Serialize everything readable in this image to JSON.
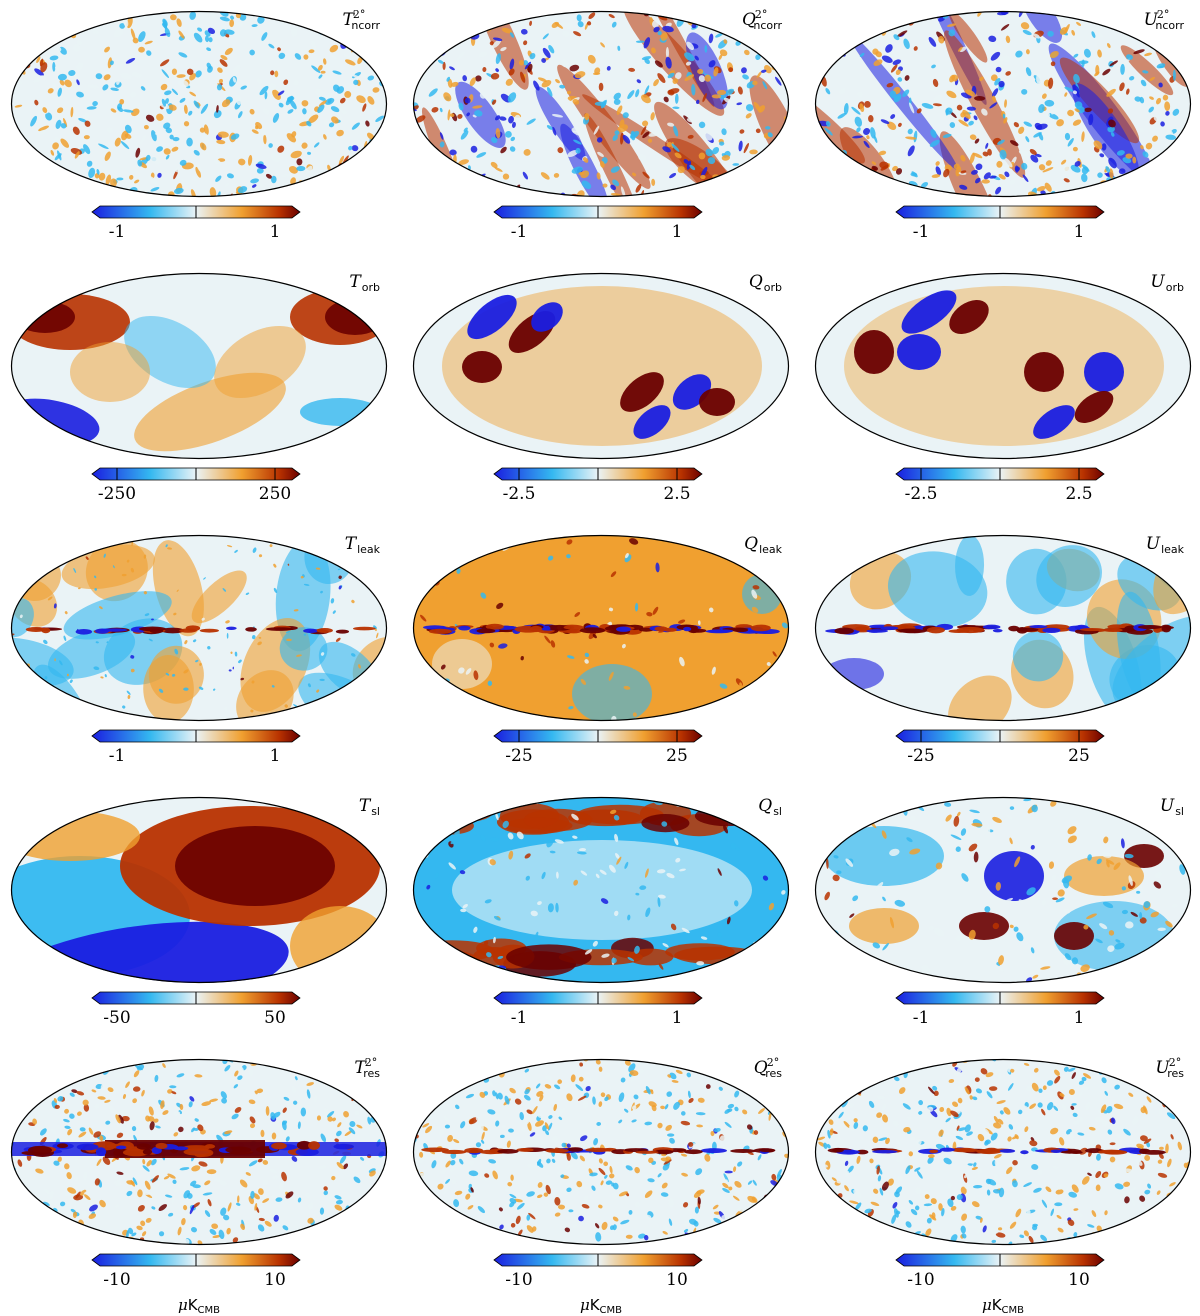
{
  "palette": {
    "cold": "#1a1ee0",
    "cool": "#34b8f0",
    "pale": "#eaf3f6",
    "warm": "#f0a030",
    "hot": "#b83200",
    "deep": "#6a0000"
  },
  "panels": [
    {
      "symbol": "T",
      "sub": "ncorr",
      "sup": "2°",
      "min": "-1",
      "max": "1",
      "pattern": "noise",
      "mid_ticks": false
    },
    {
      "symbol": "Q",
      "sub": "ncorr",
      "sup": "2°",
      "min": "-1",
      "max": "1",
      "pattern": "stripes",
      "mid_ticks": false
    },
    {
      "symbol": "U",
      "sub": "ncorr",
      "sup": "2°",
      "min": "-1",
      "max": "1",
      "pattern": "stripes",
      "mid_ticks": false
    },
    {
      "symbol": "T",
      "sub": "orb",
      "sup": "",
      "min": "-250",
      "max": "250",
      "pattern": "orb_t",
      "mid_ticks": true
    },
    {
      "symbol": "Q",
      "sub": "orb",
      "sup": "",
      "min": "-2.5",
      "max": "2.5",
      "pattern": "orb_q",
      "mid_ticks": true
    },
    {
      "symbol": "U",
      "sub": "orb",
      "sup": "",
      "min": "-2.5",
      "max": "2.5",
      "pattern": "orb_u",
      "mid_ticks": true
    },
    {
      "symbol": "T",
      "sub": "leak",
      "sup": "",
      "min": "-1",
      "max": "1",
      "pattern": "leak_t",
      "mid_ticks": false
    },
    {
      "symbol": "Q",
      "sub": "leak",
      "sup": "",
      "min": "-25",
      "max": "25",
      "pattern": "leak_q",
      "mid_ticks": true
    },
    {
      "symbol": "U",
      "sub": "leak",
      "sup": "",
      "min": "-25",
      "max": "25",
      "pattern": "leak_u",
      "mid_ticks": true
    },
    {
      "symbol": "T",
      "sub": "sl",
      "sup": "",
      "min": "-50",
      "max": "50",
      "pattern": "sl_t",
      "mid_ticks": false
    },
    {
      "symbol": "Q",
      "sub": "sl",
      "sup": "",
      "min": "-1",
      "max": "1",
      "pattern": "sl_q",
      "mid_ticks": false
    },
    {
      "symbol": "U",
      "sub": "sl",
      "sup": "",
      "min": "-1",
      "max": "1",
      "pattern": "sl_u",
      "mid_ticks": false
    },
    {
      "symbol": "T",
      "sub": "res",
      "sup": "2°",
      "min": "-10",
      "max": "10",
      "pattern": "res_t",
      "mid_ticks": false,
      "unit": "K",
      "unit_sub": "CMB"
    },
    {
      "symbol": "Q",
      "sub": "res",
      "sup": "2°",
      "min": "-10",
      "max": "10",
      "pattern": "res_q",
      "mid_ticks": false,
      "unit": "K",
      "unit_sub": "CMB"
    },
    {
      "symbol": "U",
      "sub": "res",
      "sup": "2°",
      "min": "-10",
      "max": "10",
      "pattern": "res_q",
      "mid_ticks": false,
      "unit": "K",
      "unit_sub": "CMB"
    }
  ]
}
